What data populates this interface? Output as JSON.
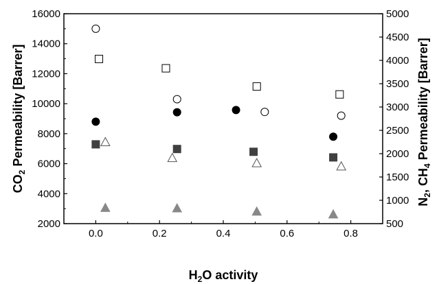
{
  "chart_data": {
    "type": "scatter",
    "title": "",
    "xlabel": {
      "prefix": "H",
      "sub": "2",
      "suffix": "O activity"
    },
    "ylabel_left": {
      "prefix": "CO",
      "sub": "2",
      "suffix": " Permeability [Barrer]"
    },
    "ylabel_right": {
      "prefix": "N",
      "sub": "2",
      "mid": ", CH",
      "sub2": "4",
      "suffix": " Permeability [Barrer]"
    },
    "xlim": [
      -0.1,
      0.9
    ],
    "ylim_left": [
      2000,
      16000
    ],
    "ylim_right": [
      500,
      5000
    ],
    "x_ticks": [
      0.0,
      0.2,
      0.4,
      0.6,
      0.8
    ],
    "x_tick_labels": [
      "0.0",
      "0.2",
      "0.4",
      "0.6",
      "0.8"
    ],
    "y_ticks_left": [
      2000,
      4000,
      6000,
      8000,
      10000,
      12000,
      14000,
      16000
    ],
    "y_tick_labels_left": [
      "2000",
      "4000",
      "6000",
      "8000",
      "10000",
      "12000",
      "14000",
      "16000"
    ],
    "y_ticks_right": [
      500,
      1000,
      1500,
      2000,
      2500,
      3000,
      3500,
      4000,
      4500,
      5000
    ],
    "y_tick_labels_right": [
      "500",
      "1000",
      "1500",
      "2000",
      "2500",
      "3000",
      "3500",
      "4000",
      "4500",
      "5000"
    ],
    "grid": false,
    "legend": "none",
    "series": [
      {
        "axis": "left",
        "marker": "circle",
        "filled": false,
        "color": "#000000",
        "points": [
          [
            0.0,
            15000
          ],
          [
            0.255,
            10300
          ],
          [
            0.53,
            9450
          ],
          [
            0.77,
            9200
          ]
        ]
      },
      {
        "axis": "left",
        "marker": "circle",
        "filled": true,
        "color": "#000000",
        "points": [
          [
            0.0,
            8800
          ],
          [
            0.255,
            9430
          ],
          [
            0.44,
            9580
          ],
          [
            0.745,
            7800
          ]
        ]
      },
      {
        "axis": "right",
        "marker": "square",
        "filled": false,
        "color": "#000000",
        "points": [
          [
            0.01,
            4030
          ],
          [
            0.22,
            3830
          ],
          [
            0.505,
            3440
          ],
          [
            0.765,
            3270
          ]
        ]
      },
      {
        "axis": "right",
        "marker": "square",
        "filled": true,
        "color": "#404040",
        "points": [
          [
            0.0,
            2200
          ],
          [
            0.255,
            2100
          ],
          [
            0.495,
            2040
          ],
          [
            0.745,
            1920
          ]
        ]
      },
      {
        "axis": "right",
        "marker": "triangle",
        "filled": false,
        "color": "#555555",
        "points": [
          [
            0.03,
            2240
          ],
          [
            0.24,
            1900
          ],
          [
            0.505,
            1790
          ],
          [
            0.77,
            1720
          ]
        ]
      },
      {
        "axis": "right",
        "marker": "triangle",
        "filled": true,
        "color": "#888888",
        "points": [
          [
            0.03,
            830
          ],
          [
            0.255,
            820
          ],
          [
            0.505,
            750
          ],
          [
            0.745,
            690
          ]
        ]
      }
    ]
  }
}
